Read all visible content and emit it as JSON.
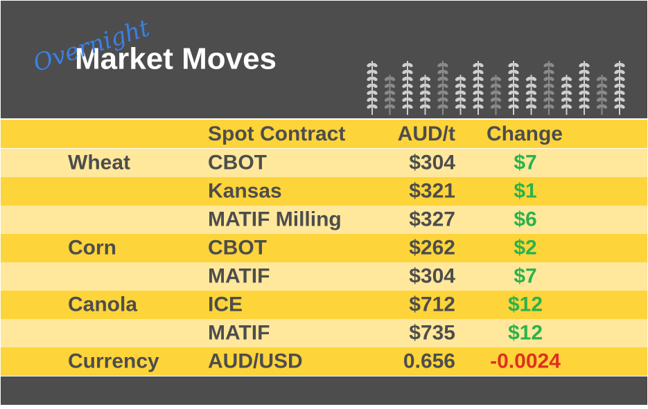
{
  "header": {
    "script": "Overnight",
    "title": "Market Moves"
  },
  "table": {
    "columns": [
      "Spot Contract",
      "AUD/t",
      "Change"
    ],
    "rows": [
      {
        "commodity": "Wheat",
        "contract": "CBOT",
        "price": "$304",
        "change": "$7",
        "change_color": "#2bb24c"
      },
      {
        "contract": "Kansas",
        "price": "$321",
        "change": "$1",
        "change_color": "#2bb24c"
      },
      {
        "contract": "MATIF Milling",
        "price": "$327",
        "change": "$6",
        "change_color": "#2bb24c"
      },
      {
        "commodity": "Corn",
        "contract": "CBOT",
        "price": "$262",
        "change": "$2",
        "change_color": "#2bb24c"
      },
      {
        "contract": "MATIF",
        "price": "$304",
        "change": "$7",
        "change_color": "#2bb24c"
      },
      {
        "commodity": "Canola",
        "contract": "ICE",
        "price": "$712",
        "change": "$12",
        "change_color": "#2bb24c"
      },
      {
        "contract": "MATIF",
        "price": "$735",
        "change": "$12",
        "change_color": "#2bb24c"
      },
      {
        "commodity": "Currency",
        "contract": "AUD/USD",
        "price": "0.656",
        "change": "-0.0024",
        "change_color": "#e0301e"
      }
    ]
  }
}
